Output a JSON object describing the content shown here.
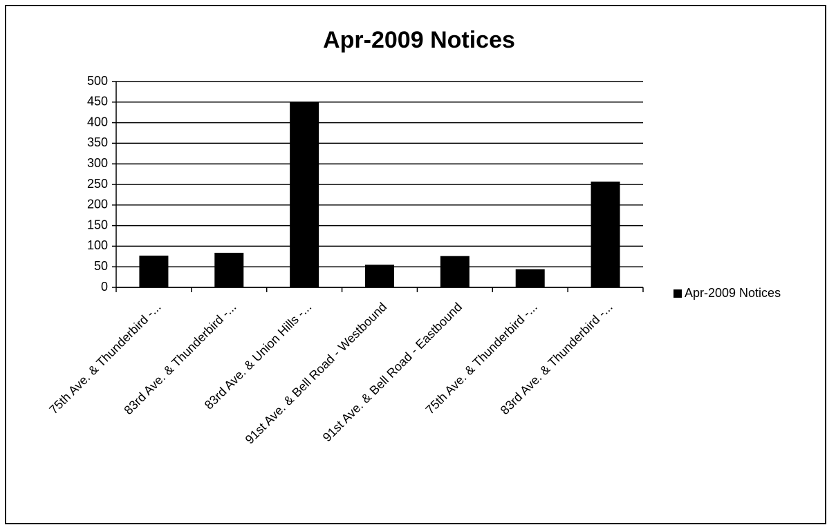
{
  "chart_data": {
    "type": "bar",
    "title": "Apr-2009 Notices",
    "categories": [
      "75th Ave. & Thunderbird -...",
      "83rd Ave. & Thunderbird -...",
      "83rd Ave. & Union Hills -...",
      "91st Ave. & Bell Road - Westbound",
      "91st Ave. & Bell Road - Eastbound",
      "75th Ave. & Thunderbird -...",
      "83rd Ave. & Thunderbird -..."
    ],
    "series": [
      {
        "name": "Apr-2009 Notices",
        "color": "#000000",
        "values": [
          77,
          84,
          451,
          55,
          76,
          44,
          257
        ]
      }
    ],
    "ylim": [
      0,
      500
    ],
    "yticks": [
      0,
      50,
      100,
      150,
      200,
      250,
      300,
      350,
      400,
      450,
      500
    ],
    "grid": true,
    "legend": "right"
  }
}
